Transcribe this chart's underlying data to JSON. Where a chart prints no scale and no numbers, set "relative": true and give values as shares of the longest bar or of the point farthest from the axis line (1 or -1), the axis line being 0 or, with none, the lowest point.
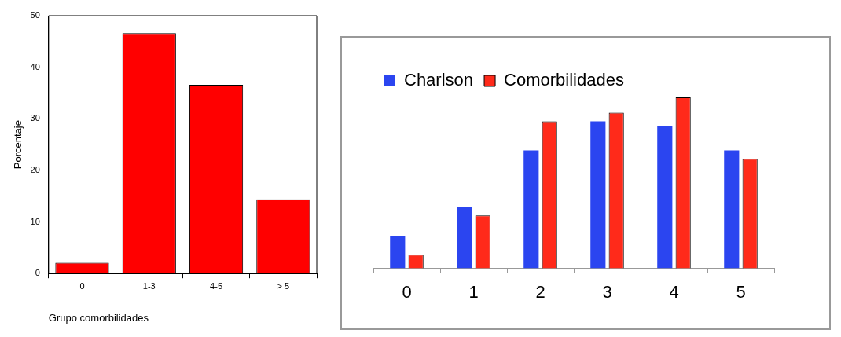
{
  "chart_data": [
    {
      "type": "bar",
      "categories": [
        "0",
        "1-3",
        "4-5",
        "> 5"
      ],
      "values": [
        2.1,
        46.6,
        36.6,
        14.4
      ],
      "color": "#ff0000",
      "ylim": [
        0,
        50
      ],
      "yticks": [
        0,
        10,
        20,
        30,
        40,
        50
      ],
      "ylabel": "Porcentaje",
      "xlabel": "Grupo comorbilidades",
      "grid": false,
      "legend": false
    },
    {
      "type": "bar",
      "relative": true,
      "categories": [
        "0",
        "1",
        "2",
        "3",
        "4",
        "5"
      ],
      "series": [
        {
          "name": "Charlson",
          "color": "#2b45f0",
          "values": [
            0.19,
            0.36,
            0.69,
            0.86,
            0.83,
            0.69
          ]
        },
        {
          "name": "Comorbilidades",
          "color": "#ff2a1a",
          "values": [
            0.08,
            0.31,
            0.86,
            0.91,
            1,
            0.64
          ]
        }
      ],
      "grid": false,
      "legend": "top left"
    }
  ]
}
